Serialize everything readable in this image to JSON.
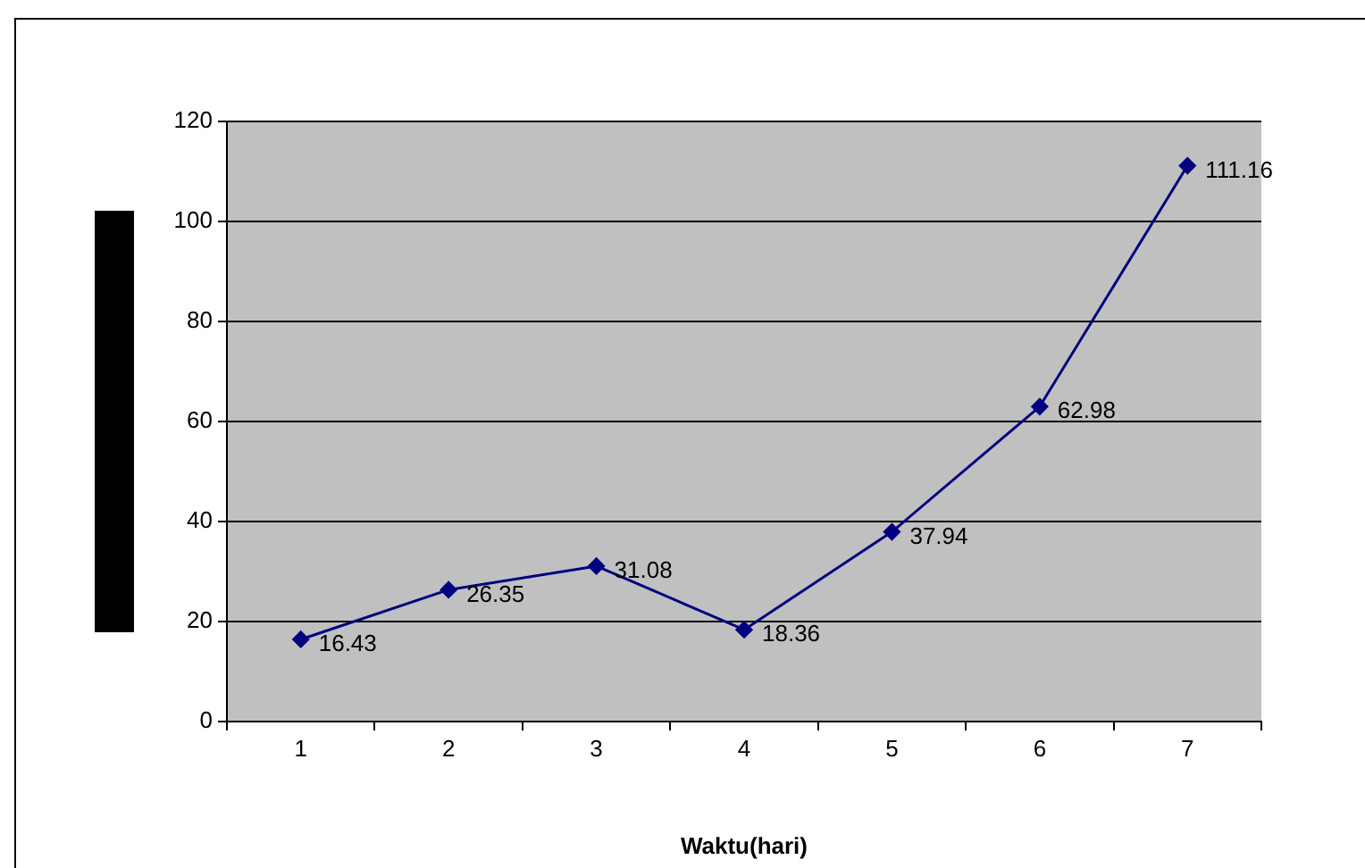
{
  "chart_data": {
    "type": "line",
    "xlabel": "Waktu(hari)",
    "categories": [
      "1",
      "2",
      "3",
      "4",
      "5",
      "6",
      "7"
    ],
    "series": [
      {
        "color": "#000080",
        "values": [
          16.43,
          26.35,
          31.08,
          18.36,
          37.94,
          62.98,
          111.16
        ]
      }
    ],
    "ylim": [
      0,
      120
    ],
    "yticks": [
      0,
      20,
      40,
      60,
      80,
      100,
      120
    ],
    "grid": "y",
    "legend": false,
    "marker": "diamond",
    "line_style": "solid",
    "data_labels": true
  }
}
